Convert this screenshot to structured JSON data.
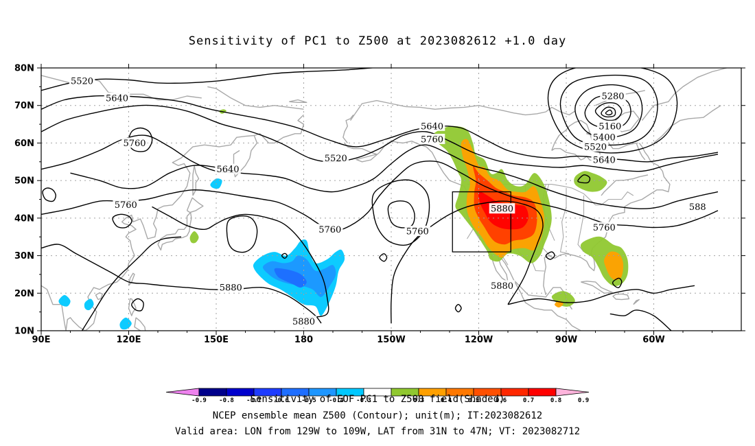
{
  "title": "Sensitivity of PC1 to Z500 at 2023082612 +1.0 day",
  "lat_labels": [
    "80N",
    "70N",
    "60N",
    "50N",
    "40N",
    "30N",
    "20N",
    "10N"
  ],
  "lon_labels": [
    "90E",
    "120E",
    "150E",
    "180",
    "150W",
    "120W",
    "90W",
    "60W"
  ],
  "contour_labels": [
    {
      "text": "5520",
      "lon": 104,
      "lat": 76.5
    },
    {
      "text": "5640",
      "lon": 116,
      "lat": 72
    },
    {
      "text": "5760",
      "lon": 122,
      "lat": 60
    },
    {
      "text": "5640",
      "lon": 154,
      "lat": 53
    },
    {
      "text": "5520",
      "lon": 191,
      "lat": 56
    },
    {
      "text": "5760",
      "lon": 119,
      "lat": 43.5
    },
    {
      "text": "5760",
      "lon": 189,
      "lat": 37
    },
    {
      "text": "5760",
      "lon": 219,
      "lat": 36.5
    },
    {
      "text": "5880",
      "lon": 155,
      "lat": 21.5
    },
    {
      "text": "5880",
      "lon": 180,
      "lat": 12.5
    },
    {
      "text": "5640",
      "lon": 224,
      "lat": 64.5
    },
    {
      "text": "5760",
      "lon": 224,
      "lat": 61
    },
    {
      "text": "5880",
      "lon": 248,
      "lat": 42.5
    },
    {
      "text": "5880",
      "lon": 248,
      "lat": 22
    },
    {
      "text": "5280",
      "lon": 286,
      "lat": 72.5
    },
    {
      "text": "5160",
      "lon": 285,
      "lat": 64.5
    },
    {
      "text": "5400",
      "lon": 283,
      "lat": 61.5
    },
    {
      "text": "5520",
      "lon": 280,
      "lat": 59
    },
    {
      "text": "5640",
      "lon": 283,
      "lat": 55.5
    },
    {
      "text": "5760",
      "lon": 283,
      "lat": 37.5
    },
    {
      "text": "588",
      "lon": 315,
      "lat": 43
    }
  ],
  "colorbar_labels": [
    "-0.9",
    "-0.8",
    "-0.7",
    "-0.6",
    "-0.5",
    "-0.4",
    "-0.3",
    "0.3",
    "0.4",
    "0.5",
    "0.6",
    "0.7",
    "0.8",
    "0.9"
  ],
  "colorbar_colors": [
    "#ee82ee",
    "#00008b",
    "#0000cd",
    "#1e3cff",
    "#1e6eff",
    "#1e96ff",
    "#00c8ff",
    "#ffffff",
    "#90c830",
    "#ffa000",
    "#ff7800",
    "#ff5000",
    "#ff2800",
    "#ff0000",
    "#ffb4dc"
  ],
  "colorbar_caption": "Sensitivity of EOF PC1 to Z500 field(Shaded)",
  "caption_line1": "NCEP ensemble mean Z500 (Contour); unit(m); IT:2023082612",
  "caption_line2": "Valid area: LON from 129W to 109W, LAT from 31N to 47N; VT: 2023082712",
  "colors": {
    "grid": "#a0a0a0",
    "coast": "#a8a8a8",
    "contour": "#000000",
    "positive_green": "#90c830",
    "positive_orange": "#ffa000",
    "positive_red": "#ff3c00",
    "negative_blue": "#1e96ff",
    "negative_cyan": "#00c8ff",
    "negative_deep": "#1e6eff"
  },
  "valid_box": {
    "lon_min": 231,
    "lon_max": 251,
    "lat_min": 31,
    "lat_max": 47
  }
}
